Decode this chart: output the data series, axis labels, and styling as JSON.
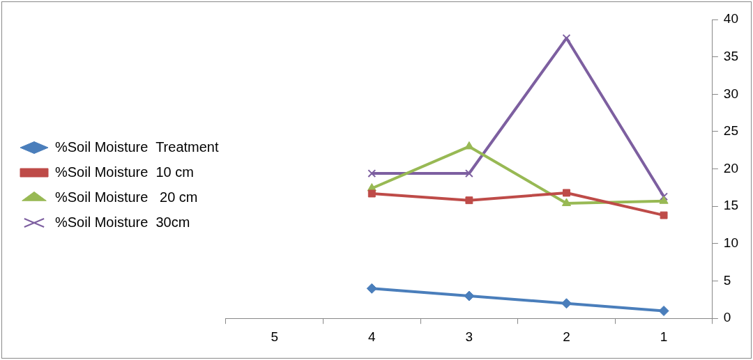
{
  "chart_data": {
    "type": "line",
    "categories": [
      "5",
      "4",
      "3",
      "2",
      "1"
    ],
    "series": [
      {
        "name": "%Soil Moisture  Treatment",
        "color": "#4a7ebb",
        "marker": "diamond",
        "values": [
          null,
          4,
          3,
          2,
          1
        ]
      },
      {
        "name": "%Soil Moisture  10 cm",
        "color": "#be4b48",
        "marker": "square",
        "values": [
          null,
          16.7,
          15.8,
          16.8,
          13.8
        ]
      },
      {
        "name": "%Soil Moisture   20 cm",
        "color": "#98b954",
        "marker": "triangle",
        "values": [
          null,
          17.4,
          23.0,
          15.4,
          15.7
        ]
      },
      {
        "name": "%Soil Moisture  30cm",
        "color": "#7d5fa0",
        "marker": "cross",
        "values": [
          null,
          19.4,
          19.4,
          37.5,
          16.3
        ]
      }
    ],
    "ylim": [
      0,
      40
    ],
    "yticks": [
      0,
      5,
      10,
      15,
      20,
      25,
      30,
      35,
      40
    ],
    "grid": false,
    "legend": "left",
    "line_style": "solid"
  }
}
